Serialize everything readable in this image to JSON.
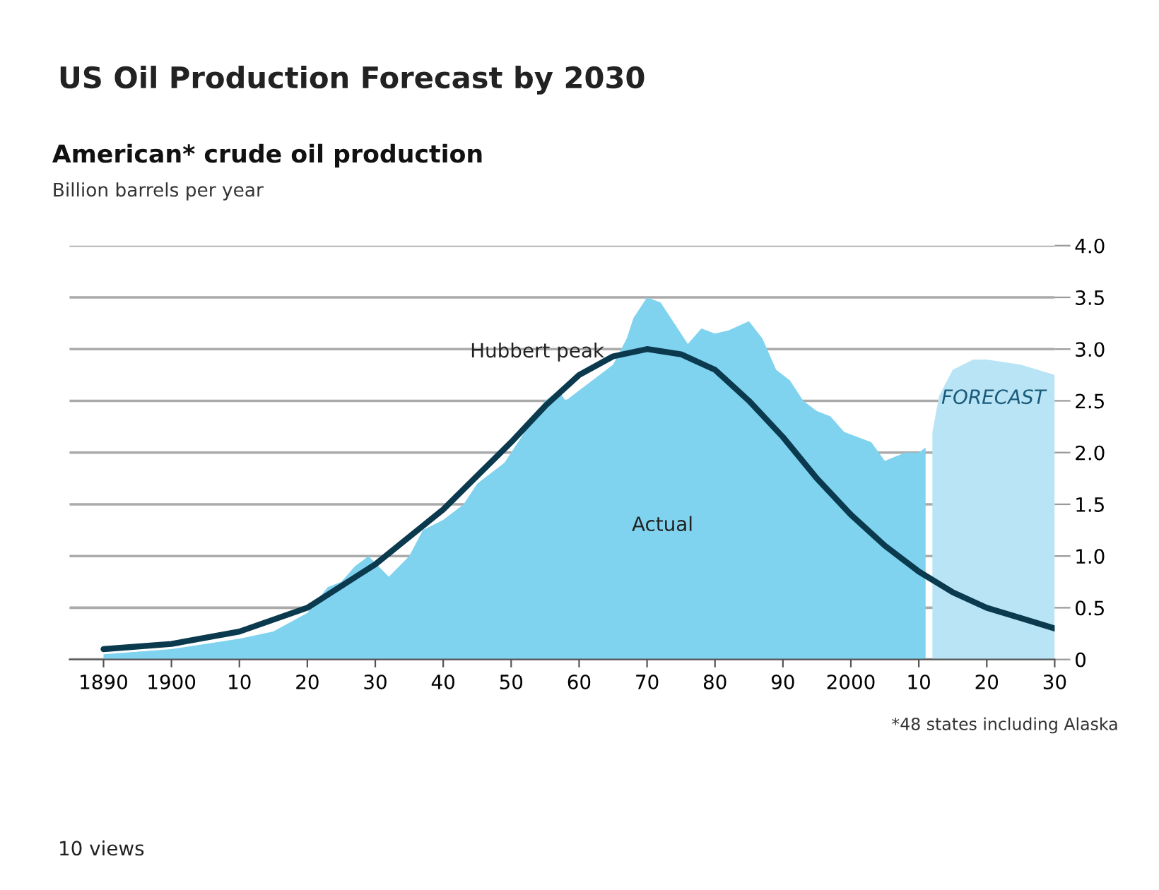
{
  "chart_data": {
    "type": "area",
    "title": "US Oil Production Forecast by 2030",
    "subtitle": "American* crude oil production",
    "ylabel": "Billion barrels per year",
    "annotations": [
      "*48 states including Alaska",
      "10 views"
    ],
    "series": [
      {
        "name": "Actual",
        "color": "#7fd3ef",
        "x": [
          1890,
          1900,
          1910,
          1915,
          1920,
          1923,
          1925,
          1927,
          1929,
          1932,
          1935,
          1937,
          1940,
          1943,
          1945,
          1947,
          1949,
          1950,
          1953,
          1955,
          1957,
          1958,
          1960,
          1962,
          1965,
          1967,
          1968,
          1970,
          1972,
          1974,
          1976,
          1978,
          1980,
          1982,
          1985,
          1987,
          1989,
          1991,
          1993,
          1995,
          1997,
          1999,
          2001,
          2003,
          2005,
          2008,
          2010,
          2011
        ],
        "values": [
          0.05,
          0.1,
          0.2,
          0.27,
          0.45,
          0.7,
          0.75,
          0.9,
          1.0,
          0.8,
          1.0,
          1.25,
          1.35,
          1.5,
          1.7,
          1.8,
          1.9,
          2.0,
          2.3,
          2.5,
          2.6,
          2.5,
          2.6,
          2.7,
          2.85,
          3.1,
          3.3,
          3.5,
          3.45,
          3.25,
          3.05,
          3.2,
          3.15,
          3.18,
          3.27,
          3.1,
          2.8,
          2.7,
          2.5,
          2.4,
          2.35,
          2.2,
          2.15,
          2.1,
          1.92,
          2.0,
          2.0,
          2.05
        ]
      },
      {
        "name": "FORECAST",
        "color": "#b8e4f5",
        "x": [
          2012,
          2013,
          2015,
          2018,
          2020,
          2025,
          2030
        ],
        "values": [
          2.2,
          2.55,
          2.8,
          2.9,
          2.9,
          2.85,
          2.75
        ]
      },
      {
        "name": "Hubbert peak",
        "type": "line",
        "color": "#0b3a4f",
        "x": [
          1890,
          1900,
          1910,
          1920,
          1930,
          1940,
          1950,
          1955,
          1960,
          1965,
          1970,
          1975,
          1980,
          1985,
          1990,
          1995,
          2000,
          2005,
          2010,
          2015,
          2020,
          2025,
          2030
        ],
        "values": [
          0.1,
          0.15,
          0.27,
          0.5,
          0.92,
          1.45,
          2.1,
          2.45,
          2.75,
          2.93,
          3.0,
          2.95,
          2.8,
          2.5,
          2.15,
          1.75,
          1.4,
          1.1,
          0.85,
          0.65,
          0.5,
          0.4,
          0.3
        ]
      }
    ],
    "xlim": [
      1885,
      2030
    ],
    "xticks": [
      1890,
      1900,
      {
        "value": 1910,
        "label": "10"
      },
      {
        "value": 1920,
        "label": "20"
      },
      {
        "value": 1930,
        "label": "30"
      },
      {
        "value": 1940,
        "label": "40"
      },
      {
        "value": 1950,
        "label": "50"
      },
      {
        "value": 1960,
        "label": "60"
      },
      {
        "value": 1970,
        "label": "70"
      },
      {
        "value": 1980,
        "label": "80"
      },
      {
        "value": 1990,
        "label": "90"
      },
      2000,
      {
        "value": 2010,
        "label": "10"
      },
      {
        "value": 2020,
        "label": "20"
      },
      {
        "value": 2030,
        "label": "30"
      }
    ],
    "ylim": [
      0,
      4.0
    ],
    "yticks": [
      0,
      {
        "value": 0.5,
        "label": "0.5"
      },
      {
        "value": 1,
        "label": "1.0"
      },
      {
        "value": 1.5,
        "label": "1.5"
      },
      {
        "value": 2,
        "label": "2.0"
      },
      {
        "value": 2.5,
        "label": "2.5"
      },
      {
        "value": 3,
        "label": "3.0"
      },
      {
        "value": 3.5,
        "label": "3.5"
      },
      {
        "value": 4,
        "label": "4.0"
      }
    ],
    "grid": "y",
    "legend": false
  }
}
